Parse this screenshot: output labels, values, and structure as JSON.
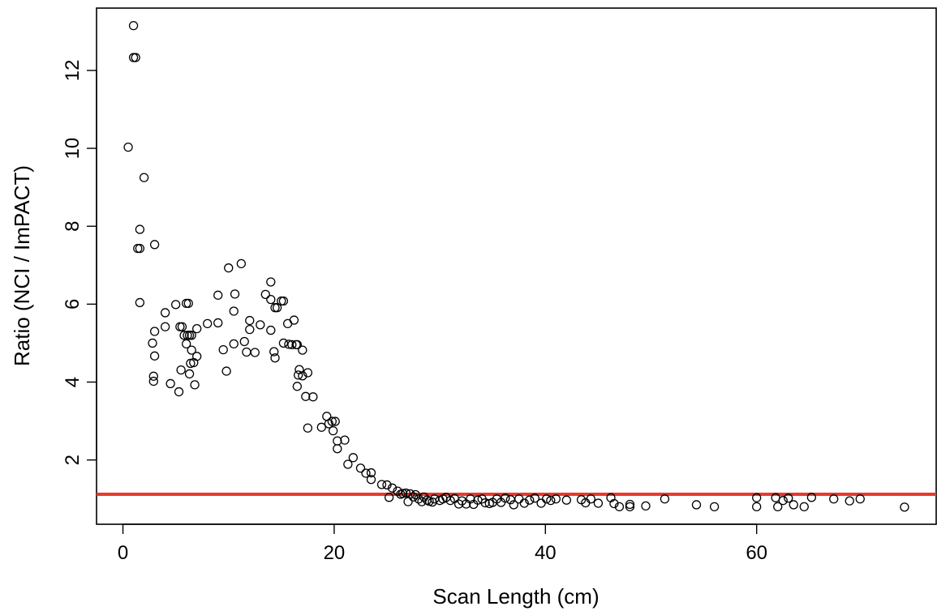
{
  "chart_data": {
    "type": "scatter",
    "xlabel": "Scan Length (cm)",
    "ylabel": "Ratio (NCI / ImPACT)",
    "xlim": [
      -2.5,
      77
    ],
    "ylim": [
      0.35,
      13.6
    ],
    "xticks": [
      0,
      20,
      40,
      60
    ],
    "yticks": [
      2,
      4,
      6,
      8,
      10,
      12
    ],
    "grid": false,
    "reference_line": {
      "y": 1.12,
      "color": "#e8392c"
    },
    "marker": {
      "shape": "open-circle",
      "color": "#000000"
    },
    "series": [
      {
        "points": [
          [
            0.5,
            10.03
          ],
          [
            1.0,
            13.15
          ],
          [
            1.0,
            12.33
          ],
          [
            1.2,
            12.33
          ],
          [
            1.4,
            7.43
          ],
          [
            1.6,
            7.43
          ],
          [
            1.6,
            7.92
          ],
          [
            1.6,
            6.04
          ],
          [
            2.0,
            9.25
          ],
          [
            2.8,
            5.0
          ],
          [
            2.9,
            4.15
          ],
          [
            2.9,
            4.02
          ],
          [
            3.0,
            5.3
          ],
          [
            3.0,
            4.67
          ],
          [
            3.0,
            7.53
          ],
          [
            4.0,
            5.78
          ],
          [
            4.0,
            5.42
          ],
          [
            4.5,
            3.96
          ],
          [
            5.0,
            5.99
          ],
          [
            5.3,
            3.75
          ],
          [
            5.4,
            5.42
          ],
          [
            5.5,
            4.31
          ],
          [
            5.6,
            5.42
          ],
          [
            5.8,
            5.2
          ],
          [
            6.0,
            6.02
          ],
          [
            6.0,
            4.98
          ],
          [
            6.1,
            5.2
          ],
          [
            6.2,
            6.02
          ],
          [
            6.3,
            5.2
          ],
          [
            6.3,
            4.21
          ],
          [
            6.4,
            4.48
          ],
          [
            6.5,
            5.2
          ],
          [
            6.5,
            4.82
          ],
          [
            6.7,
            4.5
          ],
          [
            6.8,
            3.93
          ],
          [
            7.0,
            4.66
          ],
          [
            7.0,
            5.37
          ],
          [
            8.0,
            5.5
          ],
          [
            9.0,
            5.52
          ],
          [
            9.0,
            6.23
          ],
          [
            9.5,
            4.83
          ],
          [
            9.8,
            4.28
          ],
          [
            10.0,
            6.93
          ],
          [
            10.5,
            5.82
          ],
          [
            10.5,
            4.98
          ],
          [
            10.6,
            6.26
          ],
          [
            11.2,
            7.04
          ],
          [
            11.5,
            5.04
          ],
          [
            11.7,
            4.77
          ],
          [
            12.0,
            5.35
          ],
          [
            12.0,
            5.58
          ],
          [
            12.5,
            4.76
          ],
          [
            13.0,
            5.47
          ],
          [
            13.5,
            6.25
          ],
          [
            14.0,
            6.57
          ],
          [
            14.0,
            6.12
          ],
          [
            14.0,
            5.33
          ],
          [
            14.3,
            4.78
          ],
          [
            14.4,
            4.62
          ],
          [
            14.4,
            5.91
          ],
          [
            14.6,
            5.91
          ],
          [
            15.0,
            6.08
          ],
          [
            15.2,
            6.08
          ],
          [
            15.2,
            5.0
          ],
          [
            15.6,
            5.5
          ],
          [
            15.7,
            4.97
          ],
          [
            16.0,
            4.96
          ],
          [
            16.2,
            5.59
          ],
          [
            16.4,
            4.96
          ],
          [
            16.5,
            4.96
          ],
          [
            16.5,
            3.89
          ],
          [
            16.6,
            4.18
          ],
          [
            16.7,
            4.32
          ],
          [
            17.0,
            4.82
          ],
          [
            17.0,
            4.16
          ],
          [
            17.3,
            3.63
          ],
          [
            17.5,
            2.82
          ],
          [
            17.5,
            4.24
          ],
          [
            18.0,
            3.62
          ],
          [
            18.8,
            2.84
          ],
          [
            19.3,
            3.12
          ],
          [
            19.5,
            2.93
          ],
          [
            19.8,
            2.99
          ],
          [
            19.9,
            2.75
          ],
          [
            20.1,
            2.99
          ],
          [
            20.3,
            2.49
          ],
          [
            20.3,
            2.29
          ],
          [
            21.0,
            2.51
          ],
          [
            21.3,
            1.89
          ],
          [
            21.8,
            2.06
          ],
          [
            22.5,
            1.79
          ],
          [
            23.0,
            1.66
          ],
          [
            23.5,
            1.67
          ],
          [
            23.5,
            1.5
          ],
          [
            24.5,
            1.37
          ],
          [
            25.0,
            1.36
          ],
          [
            25.2,
            1.04
          ],
          [
            25.5,
            1.28
          ],
          [
            26.0,
            1.2
          ],
          [
            26.3,
            1.12
          ],
          [
            26.5,
            1.14
          ],
          [
            26.8,
            1.15
          ],
          [
            27.0,
            0.93
          ],
          [
            27.2,
            1.13
          ],
          [
            27.5,
            1.05
          ],
          [
            27.7,
            1.11
          ],
          [
            28.0,
            1.0
          ],
          [
            28.3,
            0.93
          ],
          [
            28.5,
            1.05
          ],
          [
            28.8,
            0.97
          ],
          [
            29.0,
            0.94
          ],
          [
            29.3,
            0.92
          ],
          [
            29.5,
            1.0
          ],
          [
            30.0,
            0.96
          ],
          [
            30.3,
            1.0
          ],
          [
            30.6,
            1.04
          ],
          [
            31.0,
            0.96
          ],
          [
            31.4,
            1.01
          ],
          [
            31.8,
            0.87
          ],
          [
            32.1,
            0.95
          ],
          [
            32.5,
            0.87
          ],
          [
            32.9,
            1.0
          ],
          [
            33.2,
            0.86
          ],
          [
            33.6,
            0.97
          ],
          [
            34.0,
            1.0
          ],
          [
            34.3,
            0.9
          ],
          [
            34.7,
            0.88
          ],
          [
            35.0,
            0.91
          ],
          [
            35.4,
            1.0
          ],
          [
            35.8,
            0.91
          ],
          [
            36.2,
            1.02
          ],
          [
            36.7,
            0.98
          ],
          [
            37.0,
            0.85
          ],
          [
            37.5,
            1.0
          ],
          [
            38.0,
            0.89
          ],
          [
            38.5,
            0.97
          ],
          [
            39.0,
            1.02
          ],
          [
            39.6,
            0.89
          ],
          [
            40.1,
            1.0
          ],
          [
            40.5,
            0.96
          ],
          [
            41.0,
            1.0
          ],
          [
            42.0,
            0.97
          ],
          [
            43.4,
            0.98
          ],
          [
            43.8,
            0.9
          ],
          [
            44.3,
            1.0
          ],
          [
            45.0,
            0.89
          ],
          [
            46.2,
            1.03
          ],
          [
            46.5,
            0.88
          ],
          [
            47.0,
            0.8
          ],
          [
            48.0,
            0.86
          ],
          [
            48.0,
            0.8
          ],
          [
            49.5,
            0.82
          ],
          [
            51.3,
            1.0
          ],
          [
            54.3,
            0.85
          ],
          [
            56.0,
            0.8
          ],
          [
            60.0,
            1.03
          ],
          [
            60.0,
            0.8
          ],
          [
            61.8,
            1.03
          ],
          [
            62.0,
            0.8
          ],
          [
            62.5,
            0.96
          ],
          [
            63.0,
            1.02
          ],
          [
            63.5,
            0.85
          ],
          [
            64.5,
            0.8
          ],
          [
            65.2,
            1.04
          ],
          [
            67.3,
            1.0
          ],
          [
            68.8,
            0.95
          ],
          [
            69.8,
            1.0
          ],
          [
            74.0,
            0.79
          ]
        ]
      }
    ]
  }
}
